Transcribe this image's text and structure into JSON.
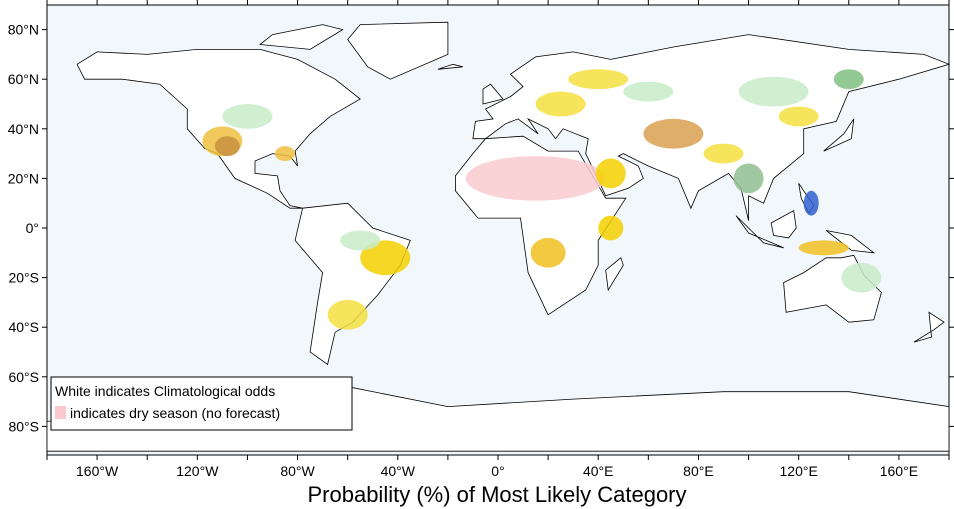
{
  "map": {
    "lat_labels": [
      "80°N",
      "60°N",
      "40°N",
      "20°N",
      "0°",
      "20°S",
      "40°S",
      "60°S",
      "80°S"
    ],
    "lon_labels": [
      "160°W",
      "120°W",
      "80°W",
      "40°W",
      "0°",
      "40°E",
      "80°E",
      "120°E",
      "160°E"
    ],
    "legend": {
      "line1": "White indicates Climatological odds",
      "line2": "indicates dry season (no forecast)"
    },
    "x_label": "Probability (%) of Most Likely Category"
  }
}
